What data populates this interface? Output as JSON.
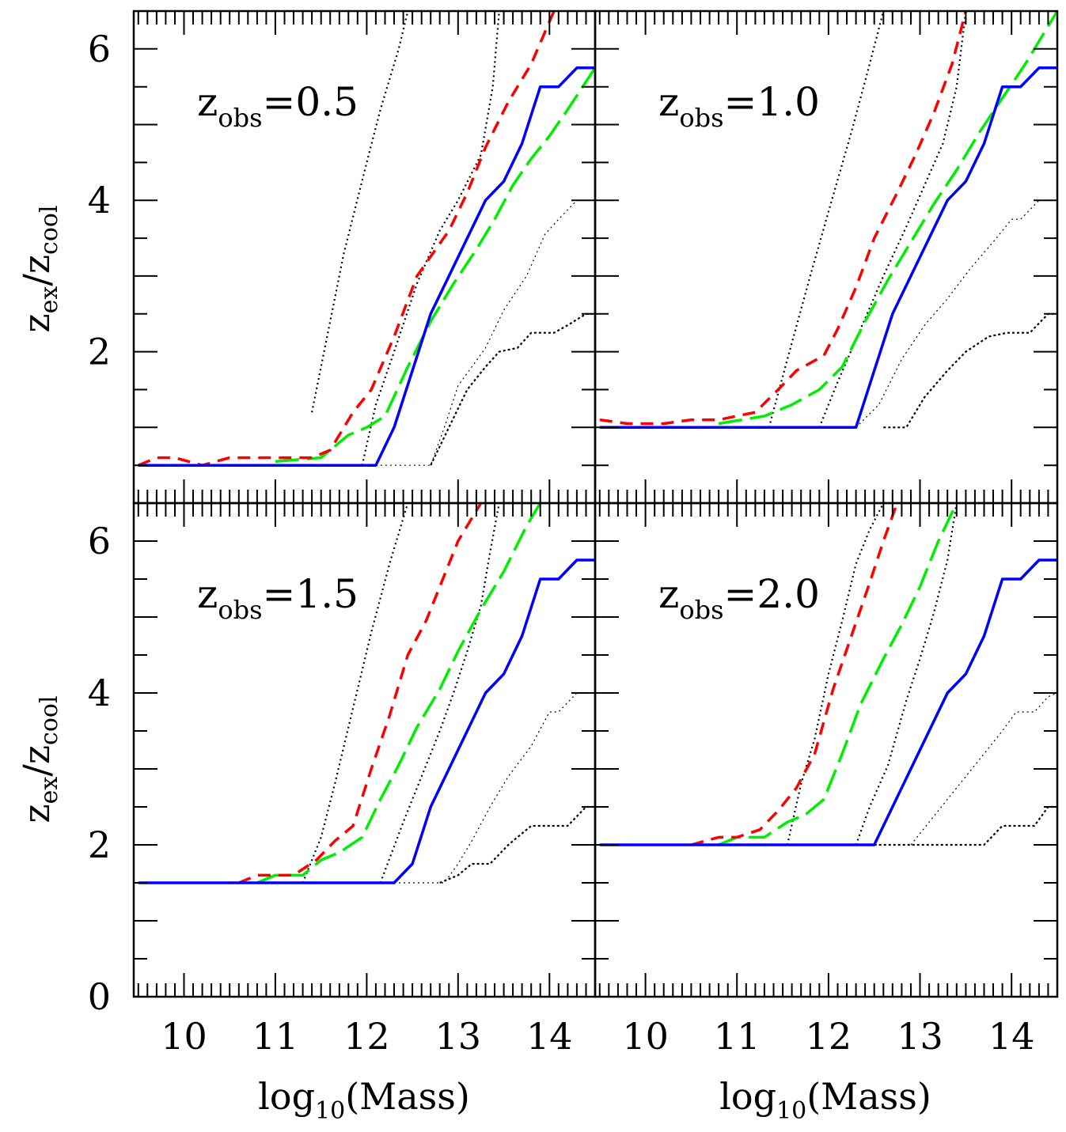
{
  "chart_data": {
    "type": "line",
    "shared": {
      "xlabel": "log",
      "xlabel_sub": "10",
      "xlabel_tail": "(Mass)",
      "ylabel_main": "z",
      "ylabel_sub1": "ex",
      "ylabel_mid": "/z",
      "ylabel_sub2": "cool",
      "xlim": [
        9.45,
        14.5
      ],
      "ylim": [
        0,
        6.5
      ],
      "x_ticks": [
        "10",
        "11",
        "12",
        "13",
        "14"
      ],
      "y_ticks": [
        "0",
        "2",
        "4",
        "6"
      ],
      "colors": {
        "blue": "#0000ff",
        "red": "#ff0000",
        "green": "#00ee00",
        "dotted": "#000000"
      }
    },
    "panels": [
      {
        "label_prefix": "z",
        "label_sub": "obs",
        "label_value": "=0.5",
        "series": [
          {
            "name": "blue-solid",
            "x": [
              9.5,
              12.1,
              12.3,
              12.7,
              13.3,
              13.5,
              13.7,
              13.9,
              14.1,
              14.3,
              14.5
            ],
            "y": [
              0.5,
              0.5,
              1.0,
              2.5,
              4.0,
              4.25,
              4.75,
              5.5,
              5.5,
              5.75,
              5.75
            ]
          },
          {
            "name": "red-dashed",
            "x": [
              9.5,
              9.7,
              9.9,
              10.2,
              10.5,
              10.8,
              11.1,
              11.4,
              11.6,
              11.85,
              12.05,
              12.3,
              12.55,
              12.9,
              13.1,
              13.3,
              13.55,
              13.8,
              14.05
            ],
            "y": [
              0.5,
              0.6,
              0.6,
              0.5,
              0.6,
              0.6,
              0.6,
              0.6,
              0.7,
              1.2,
              1.5,
              2.2,
              3.0,
              3.6,
              4.1,
              4.7,
              5.3,
              5.8,
              6.5
            ]
          },
          {
            "name": "green-longdash",
            "x": [
              11.0,
              11.5,
              11.8,
              12.0,
              12.2,
              12.45,
              12.7,
              12.95,
              13.2,
              13.4,
              13.6,
              13.8,
              14.0,
              14.2,
              14.5
            ],
            "y": [
              0.55,
              0.6,
              0.9,
              1.0,
              1.15,
              1.8,
              2.4,
              2.9,
              3.35,
              3.75,
              4.2,
              4.55,
              4.85,
              5.2,
              5.75
            ]
          },
          {
            "name": "dotted-1",
            "x": [
              11.4,
              11.6,
              11.75,
              12.0,
              12.15,
              12.35,
              12.45
            ],
            "y": [
              1.2,
              2.4,
              3.3,
              4.5,
              5.2,
              6.0,
              6.5
            ]
          },
          {
            "name": "dotted-2",
            "x": [
              11.95,
              12.1,
              12.3,
              12.55,
              12.8,
              13.0,
              13.25,
              13.38,
              13.45
            ],
            "y": [
              0.5,
              1.3,
              2.0,
              2.9,
              3.6,
              4.0,
              4.6,
              5.5,
              6.5
            ]
          },
          {
            "name": "dotted-3",
            "x": [
              12.1,
              12.7,
              12.85,
              13.0,
              13.3,
              13.5,
              13.75,
              13.95,
              14.1,
              14.3
            ],
            "y": [
              0.5,
              0.5,
              1.0,
              1.55,
              2.05,
              2.55,
              3.0,
              3.55,
              3.75,
              4.0
            ]
          },
          {
            "name": "dotted-4",
            "x": [
              12.7,
              12.9,
              13.1,
              13.3,
              13.45,
              13.65,
              13.8,
              14.05,
              14.2,
              14.4,
              14.5
            ],
            "y": [
              0.5,
              1.0,
              1.5,
              1.8,
              2.0,
              2.05,
              2.25,
              2.25,
              2.35,
              2.5,
              2.5
            ]
          }
        ]
      },
      {
        "label_prefix": "z",
        "label_sub": "obs",
        "label_value": "=1.0",
        "series": [
          {
            "name": "blue-solid",
            "x": [
              9.5,
              12.3,
              12.5,
              12.7,
              13.3,
              13.5,
              13.7,
              13.9,
              14.1,
              14.3,
              14.5
            ],
            "y": [
              1.0,
              1.0,
              1.75,
              2.5,
              4.0,
              4.25,
              4.75,
              5.5,
              5.5,
              5.75,
              5.75
            ]
          },
          {
            "name": "red-dashed",
            "x": [
              9.5,
              9.8,
              10.2,
              10.5,
              10.8,
              11.2,
              11.45,
              11.65,
              11.95,
              12.1,
              12.3,
              12.5,
              12.75,
              12.95,
              13.15,
              13.35,
              13.5
            ],
            "y": [
              1.1,
              1.05,
              1.05,
              1.1,
              1.1,
              1.2,
              1.5,
              1.75,
              1.95,
              2.3,
              2.85,
              3.5,
              4.1,
              4.6,
              5.15,
              5.8,
              6.5
            ]
          },
          {
            "name": "green-longdash",
            "x": [
              10.8,
              11.3,
              11.6,
              11.9,
              12.15,
              12.4,
              12.65,
              12.9,
              13.15,
              13.4,
              13.65,
              13.9,
              14.15,
              14.4,
              14.5
            ],
            "y": [
              1.05,
              1.15,
              1.3,
              1.5,
              1.8,
              2.4,
              2.95,
              3.45,
              3.95,
              4.4,
              4.9,
              5.35,
              5.8,
              6.3,
              6.5
            ]
          },
          {
            "name": "dotted-1",
            "x": [
              11.35,
              11.55,
              11.8,
              12.0,
              12.25,
              12.45,
              12.6
            ],
            "y": [
              1.0,
              1.9,
              3.0,
              3.85,
              4.9,
              5.8,
              6.5
            ]
          },
          {
            "name": "dotted-2",
            "x": [
              11.9,
              12.1,
              12.35,
              12.6,
              12.85,
              13.05,
              13.25,
              13.4,
              13.5
            ],
            "y": [
              1.0,
              1.6,
              2.3,
              3.0,
              3.65,
              4.2,
              4.75,
              5.5,
              6.5
            ]
          },
          {
            "name": "dotted-3",
            "x": [
              12.3,
              12.55,
              12.8,
              13.05,
              13.3,
              13.55,
              13.8,
              14.0,
              14.1,
              14.3
            ],
            "y": [
              1.0,
              1.3,
              1.9,
              2.35,
              2.7,
              3.1,
              3.45,
              3.75,
              3.75,
              4.0
            ]
          },
          {
            "name": "dotted-4",
            "x": [
              12.6,
              12.85,
              13.05,
              13.3,
              13.5,
              13.75,
              13.95,
              14.2,
              14.4,
              14.5
            ],
            "y": [
              1.0,
              1.0,
              1.4,
              1.75,
              2.0,
              2.2,
              2.25,
              2.25,
              2.5,
              2.5
            ]
          }
        ]
      },
      {
        "label_prefix": "z",
        "label_sub": "obs",
        "label_value": "=1.5",
        "series": [
          {
            "name": "blue-solid",
            "x": [
              9.5,
              12.3,
              12.5,
              12.7,
              13.3,
              13.5,
              13.7,
              13.9,
              14.1,
              14.3,
              14.5
            ],
            "y": [
              1.5,
              1.5,
              1.75,
              2.5,
              4.0,
              4.25,
              4.75,
              5.5,
              5.5,
              5.75,
              5.75
            ]
          },
          {
            "name": "red-dashed",
            "x": [
              10.6,
              10.8,
              11.2,
              11.45,
              11.65,
              11.85,
              12.05,
              12.25,
              12.45,
              12.65,
              12.85,
              13.0,
              13.15,
              13.25
            ],
            "y": [
              1.5,
              1.6,
              1.6,
              1.8,
              2.05,
              2.25,
              3.0,
              3.7,
              4.5,
              4.95,
              5.55,
              6.0,
              6.3,
              6.5
            ]
          },
          {
            "name": "green-longdash",
            "x": [
              10.8,
              11.0,
              11.3,
              11.5,
              11.7,
              11.95,
              12.15,
              12.35,
              12.55,
              12.8,
              13.0,
              13.25,
              13.5,
              13.75,
              13.9
            ],
            "y": [
              1.5,
              1.6,
              1.6,
              1.8,
              1.9,
              2.1,
              2.6,
              3.05,
              3.55,
              4.05,
              4.55,
              5.1,
              5.6,
              6.2,
              6.5
            ]
          },
          {
            "name": "dotted-1",
            "x": [
              11.3,
              11.5,
              11.65,
              11.85,
              12.05,
              12.25,
              12.45
            ],
            "y": [
              1.5,
              2.1,
              2.8,
              3.8,
              4.8,
              5.7,
              6.5
            ]
          },
          {
            "name": "dotted-2",
            "x": [
              12.15,
              12.4,
              12.6,
              12.8,
              12.95,
              13.1,
              13.25,
              13.35,
              13.45
            ],
            "y": [
              1.5,
              2.3,
              2.9,
              3.5,
              4.0,
              4.55,
              5.15,
              5.85,
              6.5
            ]
          },
          {
            "name": "dotted-3",
            "x": [
              12.3,
              12.85,
              13.0,
              13.15,
              13.35,
              13.55,
              13.8,
              14.0,
              14.1,
              14.3
            ],
            "y": [
              1.5,
              1.5,
              1.75,
              2.05,
              2.5,
              2.9,
              3.3,
              3.75,
              3.75,
              4.0
            ]
          },
          {
            "name": "dotted-4",
            "x": [
              12.8,
              13.0,
              13.15,
              13.35,
              13.55,
              13.8,
              14.0,
              14.2,
              14.4,
              14.5
            ],
            "y": [
              1.5,
              1.6,
              1.75,
              1.75,
              2.0,
              2.25,
              2.25,
              2.25,
              2.5,
              2.5
            ]
          }
        ]
      },
      {
        "label_prefix": "z",
        "label_sub": "obs",
        "label_value": "=2.0",
        "series": [
          {
            "name": "blue-solid",
            "x": [
              9.5,
              12.5,
              12.7,
              13.3,
              13.5,
              13.7,
              13.9,
              14.1,
              14.3,
              14.5
            ],
            "y": [
              2.0,
              2.0,
              2.5,
              4.0,
              4.25,
              4.75,
              5.5,
              5.5,
              5.75,
              5.75
            ]
          },
          {
            "name": "red-dashed",
            "x": [
              10.5,
              10.8,
              11.0,
              11.25,
              11.45,
              11.65,
              11.85,
              12.05,
              12.25,
              12.45,
              12.6,
              12.75
            ],
            "y": [
              2.0,
              2.1,
              2.1,
              2.2,
              2.45,
              2.75,
              3.2,
              4.05,
              4.75,
              5.45,
              6.0,
              6.5
            ]
          },
          {
            "name": "green-longdash",
            "x": [
              10.8,
              11.0,
              11.3,
              11.55,
              11.75,
              11.95,
              12.15,
              12.35,
              12.6,
              12.8,
              13.0,
              13.2,
              13.4
            ],
            "y": [
              2.0,
              2.1,
              2.1,
              2.3,
              2.4,
              2.6,
              3.2,
              3.85,
              4.45,
              4.9,
              5.4,
              6.0,
              6.5
            ]
          },
          {
            "name": "dotted-1",
            "x": [
              11.55,
              11.7,
              11.85,
              12.0,
              12.15,
              12.3,
              12.45,
              12.6
            ],
            "y": [
              2.0,
              2.8,
              3.4,
              4.25,
              4.95,
              5.7,
              6.15,
              6.5
            ]
          },
          {
            "name": "dotted-2",
            "x": [
              12.3,
              12.45,
              12.65,
              12.85,
              13.0,
              13.15,
              13.3,
              13.4
            ],
            "y": [
              2.0,
              2.5,
              3.05,
              3.9,
              4.45,
              5.05,
              5.75,
              6.5
            ]
          },
          {
            "name": "dotted-3",
            "x": [
              12.9,
              13.1,
              13.3,
              13.5,
              13.7,
              13.9,
              14.05,
              14.25,
              14.4,
              14.5
            ],
            "y": [
              2.0,
              2.3,
              2.6,
              2.9,
              3.2,
              3.5,
              3.75,
              3.75,
              3.95,
              4.0
            ]
          },
          {
            "name": "dotted-4",
            "x": [
              12.5,
              13.7,
              13.9,
              14.05,
              14.25,
              14.4,
              14.5
            ],
            "y": [
              2.0,
              2.0,
              2.25,
              2.25,
              2.25,
              2.5,
              2.5
            ]
          }
        ]
      }
    ]
  }
}
